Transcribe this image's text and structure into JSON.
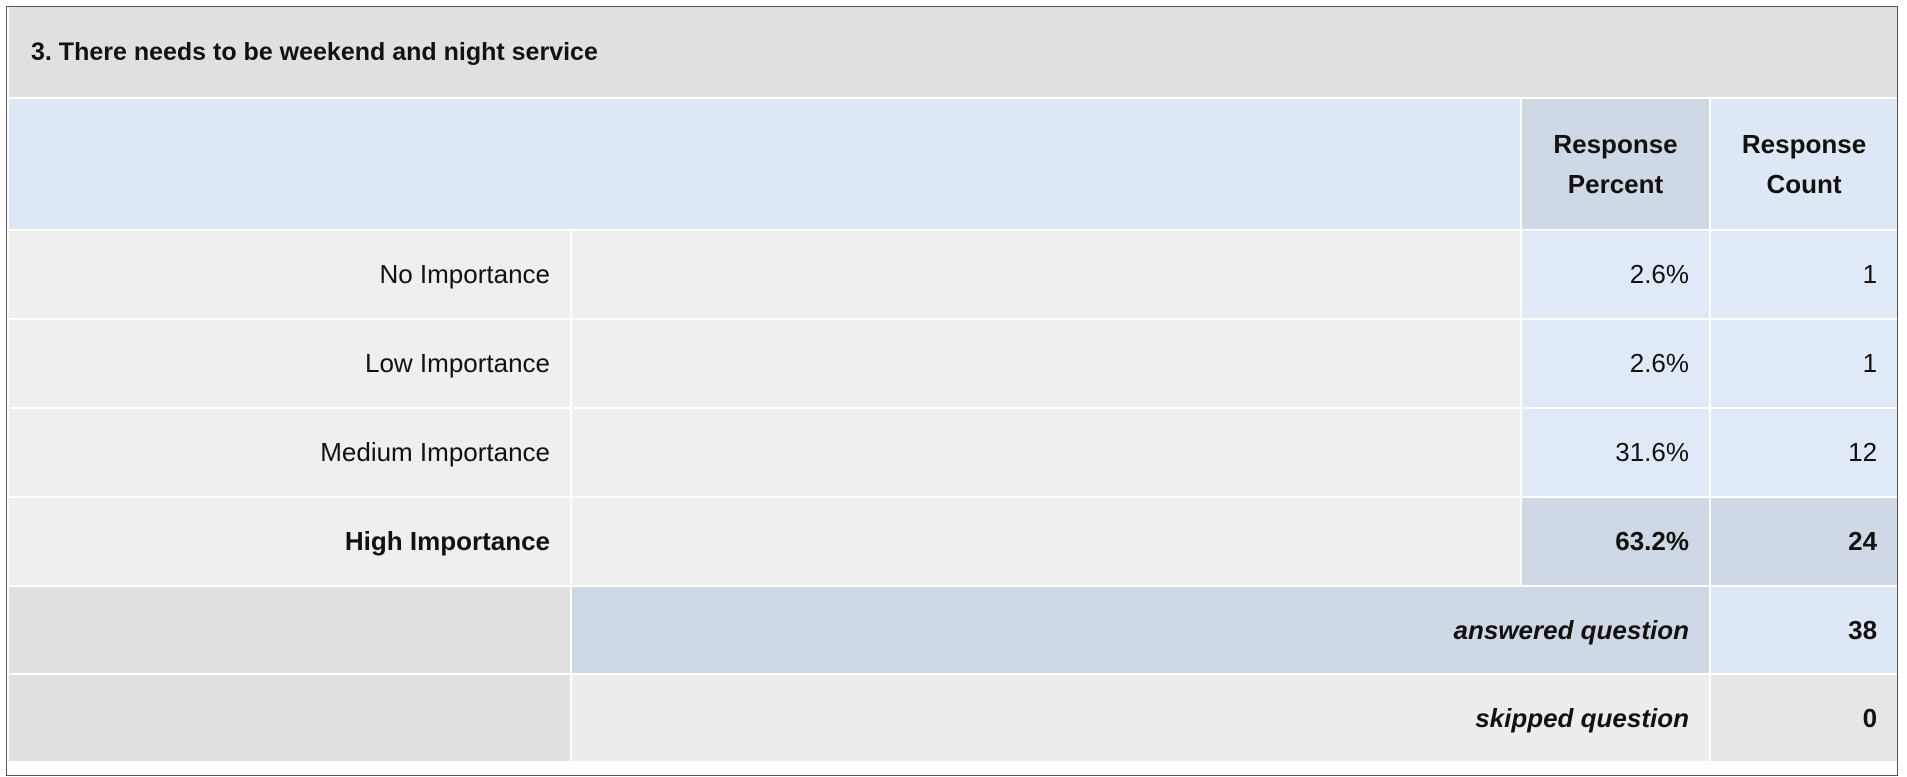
{
  "chart_data": {
    "type": "bar",
    "title": "3. There needs to be weekend and night service",
    "columns": [
      "Response Percent",
      "Response Count"
    ],
    "categories": [
      "No Importance",
      "Low Importance",
      "Medium Importance",
      "High Importance"
    ],
    "values": [
      2.6,
      2.6,
      31.6,
      63.2
    ],
    "value_labels": [
      "2.6%",
      "2.6%",
      "31.6%",
      "63.2%"
    ],
    "counts": [
      1,
      1,
      12,
      24
    ],
    "xlim": [
      0,
      100
    ],
    "color": "#8cc2f2",
    "summary": [
      {
        "label": "answered question",
        "value": 38
      },
      {
        "label": "skipped question",
        "value": 0
      }
    ]
  }
}
